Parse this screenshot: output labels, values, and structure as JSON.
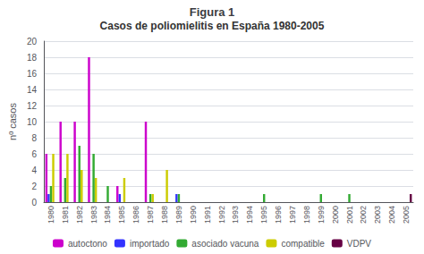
{
  "chart_data": {
    "type": "bar",
    "title": "Figura 1",
    "subtitle": "Casos de poliomielitis en España 1980-2005",
    "ylabel": "nº casos",
    "categories": [
      "1980",
      "1981",
      "1982",
      "1983",
      "1984",
      "1985",
      "1986",
      "1987",
      "1988",
      "1989",
      "1990",
      "1991",
      "1992",
      "1993",
      "1994",
      "1995",
      "1996",
      "1997",
      "1998",
      "1999",
      "2000",
      "2001",
      "2002",
      "2003",
      "2004",
      "2005"
    ],
    "series": [
      {
        "name": "autoctono",
        "color": "#cc00cc",
        "values": [
          6,
          10,
          10,
          18,
          0,
          2,
          0,
          10,
          0,
          0,
          0,
          0,
          0,
          0,
          0,
          0,
          0,
          0,
          0,
          0,
          0,
          0,
          0,
          0,
          0,
          0
        ]
      },
      {
        "name": "importado",
        "color": "#3333ff",
        "values": [
          1,
          0,
          0,
          0,
          0,
          1,
          0,
          0,
          0,
          1,
          0,
          0,
          0,
          0,
          0,
          0,
          0,
          0,
          0,
          0,
          0,
          0,
          0,
          0,
          0,
          0
        ]
      },
      {
        "name": "asociado vacuna",
        "color": "#33aa33",
        "values": [
          2,
          3,
          7,
          6,
          2,
          0,
          0,
          1,
          0,
          1,
          0,
          0,
          0,
          0,
          0,
          1,
          0,
          0,
          0,
          1,
          0,
          1,
          0,
          0,
          0,
          0
        ]
      },
      {
        "name": "compatible",
        "color": "#cccc00",
        "values": [
          6,
          6,
          4,
          3,
          0,
          3,
          0,
          1,
          4,
          0,
          0,
          0,
          0,
          0,
          0,
          0,
          0,
          0,
          0,
          0,
          0,
          0,
          0,
          0,
          0,
          0
        ]
      },
      {
        "name": "VDPV",
        "color": "#660044",
        "values": [
          0,
          0,
          0,
          0,
          0,
          0,
          0,
          0,
          0,
          0,
          0,
          0,
          0,
          0,
          0,
          0,
          0,
          0,
          0,
          0,
          0,
          0,
          0,
          0,
          0,
          1
        ]
      }
    ],
    "ylim": [
      0,
      20
    ],
    "yticks": [
      0,
      2,
      4,
      6,
      8,
      10,
      12,
      14,
      16,
      18,
      20
    ],
    "grid": true,
    "legend": "bottom"
  }
}
